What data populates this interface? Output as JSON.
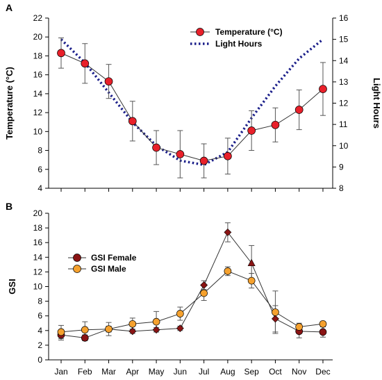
{
  "chart_data": [
    {
      "panel": "A",
      "type": "line",
      "categories": [
        "Jan",
        "Feb",
        "Mar",
        "Apr",
        "May",
        "Jun",
        "Jul",
        "Aug",
        "Sep",
        "Oct",
        "Nov",
        "Dec"
      ],
      "ylabel": "Temperature (°C)",
      "ylim": [
        4,
        22
      ],
      "yticks": [
        4,
        6,
        8,
        10,
        12,
        14,
        16,
        18,
        20,
        22
      ],
      "y2label": "Light Hours",
      "y2lim": [
        8,
        16
      ],
      "y2ticks": [
        8,
        9,
        10,
        11,
        12,
        13,
        14,
        15,
        16
      ],
      "legend_position": "top-right",
      "series": [
        {
          "name": "Temperature (°C)",
          "axis": "left",
          "style": "line-marker",
          "color": "#e8202a",
          "values": [
            18.3,
            17.2,
            15.3,
            11.1,
            8.3,
            7.6,
            6.9,
            7.4,
            10.1,
            10.7,
            12.3,
            14.5
          ],
          "errors": [
            1.6,
            2.1,
            1.8,
            2.1,
            1.8,
            2.5,
            1.8,
            1.9,
            2.1,
            1.8,
            2.1,
            2.8
          ]
        },
        {
          "name": "Light Hours",
          "axis": "right",
          "style": "dotted",
          "color": "#1b1f8a",
          "values": [
            15.0,
            13.9,
            12.5,
            11.1,
            10.0,
            9.3,
            9.1,
            9.7,
            11.3,
            12.8,
            14.1,
            15.0
          ]
        }
      ]
    },
    {
      "panel": "B",
      "type": "line",
      "categories": [
        "Jan",
        "Feb",
        "Mar",
        "Apr",
        "May",
        "Jun",
        "Jul",
        "Aug",
        "Sep",
        "Oct",
        "Nov",
        "Dec"
      ],
      "ylabel": "GSI",
      "ylim": [
        0,
        20
      ],
      "yticks": [
        0,
        2,
        4,
        6,
        8,
        10,
        12,
        14,
        16,
        18,
        20
      ],
      "legend_position": "middle-left",
      "series": [
        {
          "name": "GSI Female",
          "color": "#8a1414",
          "markers": [
            "circle",
            "circle",
            "diamond",
            "diamond",
            "diamond",
            "diamond",
            "diamond",
            "diamond",
            "triangle",
            "diamond",
            "circle",
            "circle"
          ],
          "values": [
            3.4,
            3.0,
            4.2,
            3.9,
            4.1,
            4.3,
            10.2,
            17.4,
            13.2,
            5.6,
            3.9,
            3.8
          ],
          "errors": [
            0.7,
            0.4,
            0.4,
            0.3,
            0.3,
            0.3,
            0.6,
            1.3,
            2.4,
            1.8,
            0.9,
            0.7
          ]
        },
        {
          "name": "GSI Male",
          "color": "#f5a12e",
          "markers": [
            "circle",
            "circle",
            "circle",
            "circle",
            "circle",
            "circle",
            "circle",
            "circle",
            "circle",
            "circle",
            "circle",
            "circle"
          ],
          "values": [
            3.8,
            4.1,
            4.2,
            4.9,
            5.2,
            6.3,
            9.1,
            12.1,
            10.8,
            6.5,
            4.5,
            4.9
          ],
          "errors": [
            0.9,
            1.1,
            0.9,
            0.8,
            1.4,
            0.9,
            1.0,
            0.6,
            1.0,
            2.9,
            0.5,
            0.3
          ]
        }
      ]
    }
  ]
}
